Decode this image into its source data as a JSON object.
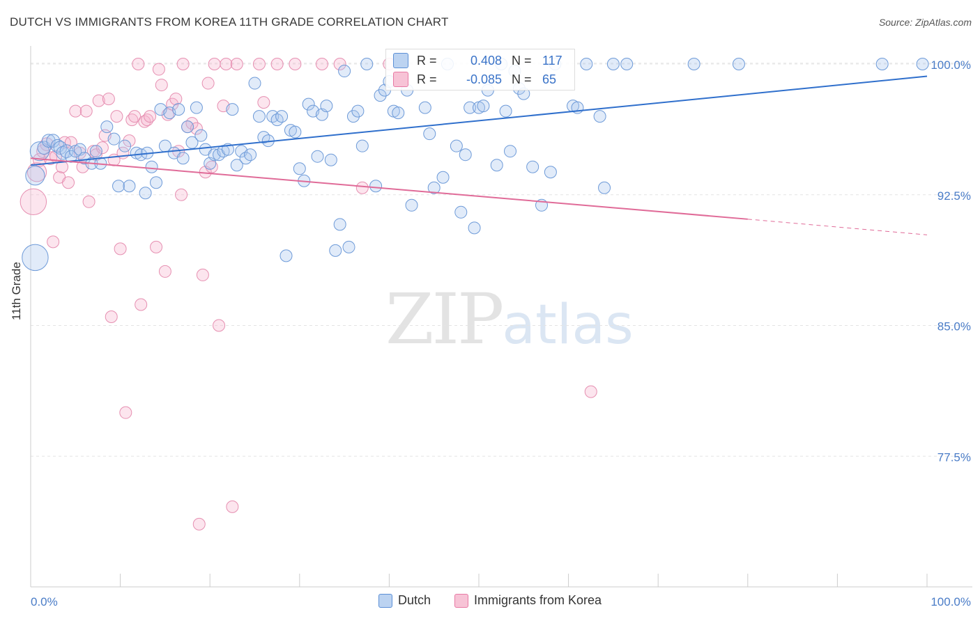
{
  "title": "DUTCH VS IMMIGRANTS FROM KOREA 11TH GRADE CORRELATION CHART",
  "source": "Source: ZipAtlas.com",
  "watermark": {
    "zip": "ZIP",
    "atlas": "atlas"
  },
  "colors": {
    "dutch": "#5b8fd6",
    "korea": "#e879a4",
    "dutch_line": "#2f6fcc",
    "korea_line": "#e06b98",
    "tick_label": "#4a7cc7"
  },
  "stats": {
    "dutch": {
      "r_label": "R =",
      "r_value": "0.408",
      "n_label": "N =",
      "n_value": "117"
    },
    "korea": {
      "r_label": "R =",
      "r_value": "-0.085",
      "n_label": "N =",
      "n_value": "65"
    }
  },
  "chart_data": {
    "type": "scatter",
    "title": "DUTCH VS IMMIGRANTS FROM KOREA 11TH GRADE CORRELATION CHART",
    "xlabel": "",
    "ylabel": "11th Grade",
    "xlim": [
      0,
      100
    ],
    "ylim": [
      70.0,
      100.8
    ],
    "x_tick_labels": [
      "0.0%",
      "100.0%"
    ],
    "y_ticks": [
      100.0,
      92.5,
      85.0,
      77.5
    ],
    "y_tick_labels": [
      "100.0%",
      "92.5%",
      "85.0%",
      "77.5%"
    ],
    "grid": true,
    "legend": [
      "Dutch",
      "Immigrants from Korea"
    ],
    "series": [
      {
        "name": "Dutch",
        "trend": {
          "x": [
            0,
            100
          ],
          "y": [
            94.2,
            99.3
          ]
        },
        "points": [
          [
            0.5,
            88.9,
            2.2
          ],
          [
            0.5,
            93.6,
            1.6
          ],
          [
            1.0,
            95.0,
            1.6
          ],
          [
            1.5,
            95.2,
            1.1
          ],
          [
            2.0,
            95.6,
            1.1
          ],
          [
            2.5,
            95.6,
            1.1
          ],
          [
            3.0,
            95.3,
            1.1
          ],
          [
            3.3,
            95.2,
            1.1
          ],
          [
            3.6,
            94.9,
            1.1
          ],
          [
            4.0,
            95.0,
            1.1
          ],
          [
            4.5,
            94.7,
            1.0
          ],
          [
            5.0,
            95.0,
            1.0
          ],
          [
            5.5,
            95.1,
            1.0
          ],
          [
            6.0,
            94.6,
            1.0
          ],
          [
            6.8,
            94.3,
            1.0
          ],
          [
            7.3,
            95.0,
            1.0
          ],
          [
            7.8,
            94.3,
            1.0
          ],
          [
            8.5,
            96.4,
            1.0
          ],
          [
            9.3,
            95.7,
            1.0
          ],
          [
            9.8,
            93.0,
            1.0
          ],
          [
            10.5,
            95.3,
            1.0
          ],
          [
            11.0,
            93.0,
            1.0
          ],
          [
            11.8,
            94.9,
            1.0
          ],
          [
            12.3,
            94.8,
            1.0
          ],
          [
            12.8,
            92.6,
            1.0
          ],
          [
            13.0,
            94.9,
            1.0
          ],
          [
            13.5,
            94.1,
            1.0
          ],
          [
            14.0,
            93.2,
            1.0
          ],
          [
            14.5,
            97.4,
            1.0
          ],
          [
            15.0,
            95.3,
            1.0
          ],
          [
            15.5,
            97.2,
            1.0
          ],
          [
            16.0,
            94.9,
            1.0
          ],
          [
            16.5,
            97.4,
            1.0
          ],
          [
            17.0,
            94.6,
            1.0
          ],
          [
            17.5,
            96.4,
            1.0
          ],
          [
            18.0,
            95.5,
            1.0
          ],
          [
            18.5,
            97.5,
            1.0
          ],
          [
            19.0,
            95.9,
            1.0
          ],
          [
            19.5,
            95.1,
            1.0
          ],
          [
            20.0,
            94.3,
            1.0
          ],
          [
            20.5,
            94.8,
            1.0
          ],
          [
            21.0,
            94.8,
            1.0
          ],
          [
            21.5,
            95.0,
            1.0
          ],
          [
            22.0,
            95.1,
            1.0
          ],
          [
            22.5,
            97.4,
            1.0
          ],
          [
            23.0,
            94.2,
            1.0
          ],
          [
            23.5,
            95.0,
            1.0
          ],
          [
            24.0,
            94.6,
            1.0
          ],
          [
            24.5,
            94.8,
            1.0
          ],
          [
            25.0,
            98.9,
            1.0
          ],
          [
            25.5,
            97.0,
            1.0
          ],
          [
            26.0,
            95.8,
            1.0
          ],
          [
            26.5,
            95.6,
            1.0
          ],
          [
            27.0,
            97.0,
            1.0
          ],
          [
            27.5,
            96.8,
            1.0
          ],
          [
            28.0,
            97.0,
            1.0
          ],
          [
            28.5,
            89.0,
            1.0
          ],
          [
            29.0,
            96.2,
            1.0
          ],
          [
            29.5,
            96.1,
            1.0
          ],
          [
            30.0,
            94.0,
            1.0
          ],
          [
            30.5,
            93.3,
            1.0
          ],
          [
            31.0,
            97.7,
            1.0
          ],
          [
            31.5,
            97.3,
            1.0
          ],
          [
            32.0,
            94.7,
            1.0
          ],
          [
            32.5,
            97.1,
            1.0
          ],
          [
            33.0,
            97.6,
            1.0
          ],
          [
            33.5,
            94.5,
            1.0
          ],
          [
            34.0,
            89.3,
            1.0
          ],
          [
            34.5,
            90.8,
            1.0
          ],
          [
            35.0,
            99.6,
            1.0
          ],
          [
            35.5,
            89.5,
            1.0
          ],
          [
            36.0,
            97.0,
            1.0
          ],
          [
            36.5,
            97.3,
            1.0
          ],
          [
            37.0,
            95.3,
            1.0
          ],
          [
            37.5,
            100.0,
            1.0
          ],
          [
            38.5,
            93.0,
            1.0
          ],
          [
            39.0,
            98.2,
            1.0
          ],
          [
            39.5,
            98.5,
            1.0
          ],
          [
            40.0,
            99.0,
            1.0
          ],
          [
            40.5,
            97.3,
            1.0
          ],
          [
            41.0,
            97.2,
            1.0
          ],
          [
            42.0,
            98.5,
            1.0
          ],
          [
            42.5,
            91.9,
            1.0
          ],
          [
            44.0,
            97.5,
            1.0
          ],
          [
            44.5,
            96.0,
            1.0
          ],
          [
            45.0,
            92.9,
            1.0
          ],
          [
            46.0,
            93.5,
            1.0
          ],
          [
            46.5,
            100.0,
            1.0
          ],
          [
            47.5,
            95.3,
            1.0
          ],
          [
            48.0,
            91.5,
            1.0
          ],
          [
            48.5,
            94.8,
            1.0
          ],
          [
            49.0,
            97.5,
            1.0
          ],
          [
            49.5,
            90.6,
            1.0
          ],
          [
            50.0,
            97.5,
            1.0
          ],
          [
            50.5,
            97.6,
            1.0
          ],
          [
            51.0,
            98.5,
            1.0
          ],
          [
            52.0,
            94.2,
            1.0
          ],
          [
            52.5,
            100.0,
            1.0
          ],
          [
            53.0,
            97.3,
            1.0
          ],
          [
            53.5,
            95.0,
            1.0
          ],
          [
            54.0,
            99.6,
            1.0
          ],
          [
            54.5,
            98.6,
            1.0
          ],
          [
            55.0,
            98.3,
            1.0
          ],
          [
            56.0,
            94.1,
            1.0
          ],
          [
            57.0,
            91.9,
            1.0
          ],
          [
            58.0,
            93.8,
            1.0
          ],
          [
            58.5,
            100.0,
            1.0
          ],
          [
            60.5,
            97.6,
            1.0
          ],
          [
            61.0,
            97.5,
            1.0
          ],
          [
            62.0,
            100.0,
            1.0
          ],
          [
            63.5,
            97.0,
            1.0
          ],
          [
            64.0,
            92.9,
            1.0
          ],
          [
            65.0,
            100.0,
            1.0
          ],
          [
            66.5,
            100.0,
            1.0
          ],
          [
            74.0,
            100.0,
            1.0
          ],
          [
            79.0,
            100.0,
            1.0
          ],
          [
            95.0,
            100.0,
            1.0
          ],
          [
            99.5,
            100.0,
            1.0
          ]
        ]
      },
      {
        "name": "Immigrants from Korea",
        "trend": {
          "x": [
            0,
            80
          ],
          "y": [
            94.6,
            91.1
          ]
        },
        "trend_dashed": {
          "x": [
            80,
            100
          ],
          "y": [
            91.1,
            90.2
          ]
        },
        "points": [
          [
            0.3,
            92.1,
            2.2
          ],
          [
            0.7,
            93.8,
            1.6
          ],
          [
            1.0,
            94.5,
            1.1
          ],
          [
            1.4,
            95.0,
            1.1
          ],
          [
            1.8,
            95.4,
            1.1
          ],
          [
            2.2,
            94.6,
            1.1
          ],
          [
            2.5,
            89.8,
            1.0
          ],
          [
            2.8,
            94.7,
            1.0
          ],
          [
            3.2,
            93.5,
            1.0
          ],
          [
            3.5,
            94.1,
            1.0
          ],
          [
            3.8,
            95.5,
            1.0
          ],
          [
            4.2,
            93.2,
            1.0
          ],
          [
            4.5,
            95.5,
            1.0
          ],
          [
            5.0,
            97.3,
            1.0
          ],
          [
            5.5,
            94.9,
            1.0
          ],
          [
            5.8,
            94.1,
            1.0
          ],
          [
            6.2,
            97.3,
            1.0
          ],
          [
            6.5,
            92.1,
            1.0
          ],
          [
            7.0,
            95.0,
            1.0
          ],
          [
            7.3,
            94.8,
            1.0
          ],
          [
            7.6,
            97.9,
            1.0
          ],
          [
            8.0,
            95.2,
            1.0
          ],
          [
            8.3,
            95.9,
            1.0
          ],
          [
            8.7,
            98.0,
            1.0
          ],
          [
            9.0,
            85.5,
            1.0
          ],
          [
            9.3,
            94.5,
            1.0
          ],
          [
            9.6,
            97.0,
            1.0
          ],
          [
            10.0,
            89.4,
            1.0
          ],
          [
            10.3,
            94.9,
            1.0
          ],
          [
            10.6,
            80.0,
            1.0
          ],
          [
            11.0,
            95.6,
            1.0
          ],
          [
            11.3,
            96.8,
            1.0
          ],
          [
            11.6,
            97.0,
            1.0
          ],
          [
            12.0,
            100.0,
            1.0
          ],
          [
            12.3,
            86.2,
            1.0
          ],
          [
            12.7,
            96.7,
            1.0
          ],
          [
            13.0,
            96.8,
            1.0
          ],
          [
            13.3,
            97.0,
            1.0
          ],
          [
            14.0,
            89.5,
            1.0
          ],
          [
            14.3,
            99.7,
            1.0
          ],
          [
            14.6,
            98.8,
            1.0
          ],
          [
            15.0,
            88.1,
            1.0
          ],
          [
            15.3,
            97.1,
            1.0
          ],
          [
            15.8,
            97.7,
            1.0
          ],
          [
            16.2,
            98.0,
            1.0
          ],
          [
            16.5,
            95.0,
            1.0
          ],
          [
            16.8,
            92.5,
            1.0
          ],
          [
            17.0,
            100.0,
            1.0
          ],
          [
            17.5,
            96.4,
            1.0
          ],
          [
            18.0,
            96.6,
            1.0
          ],
          [
            18.5,
            96.3,
            1.0
          ],
          [
            18.8,
            73.6,
            1.0
          ],
          [
            19.2,
            87.9,
            1.0
          ],
          [
            19.5,
            93.8,
            1.0
          ],
          [
            19.8,
            98.9,
            1.0
          ],
          [
            20.2,
            94.1,
            1.0
          ],
          [
            20.5,
            100.0,
            1.0
          ],
          [
            21.0,
            85.0,
            1.0
          ],
          [
            21.5,
            97.6,
            1.0
          ],
          [
            21.8,
            100.0,
            1.0
          ],
          [
            22.5,
            74.6,
            1.0
          ],
          [
            23.0,
            100.0,
            1.0
          ],
          [
            25.5,
            100.0,
            1.0
          ],
          [
            26.0,
            97.8,
            1.0
          ],
          [
            27.5,
            100.0,
            1.0
          ],
          [
            29.5,
            100.0,
            1.0
          ],
          [
            32.5,
            100.0,
            1.0
          ],
          [
            34.5,
            100.0,
            1.0
          ],
          [
            37.0,
            92.9,
            1.0
          ],
          [
            40.0,
            100.0,
            1.0
          ],
          [
            62.5,
            81.2,
            1.0
          ]
        ]
      }
    ]
  }
}
